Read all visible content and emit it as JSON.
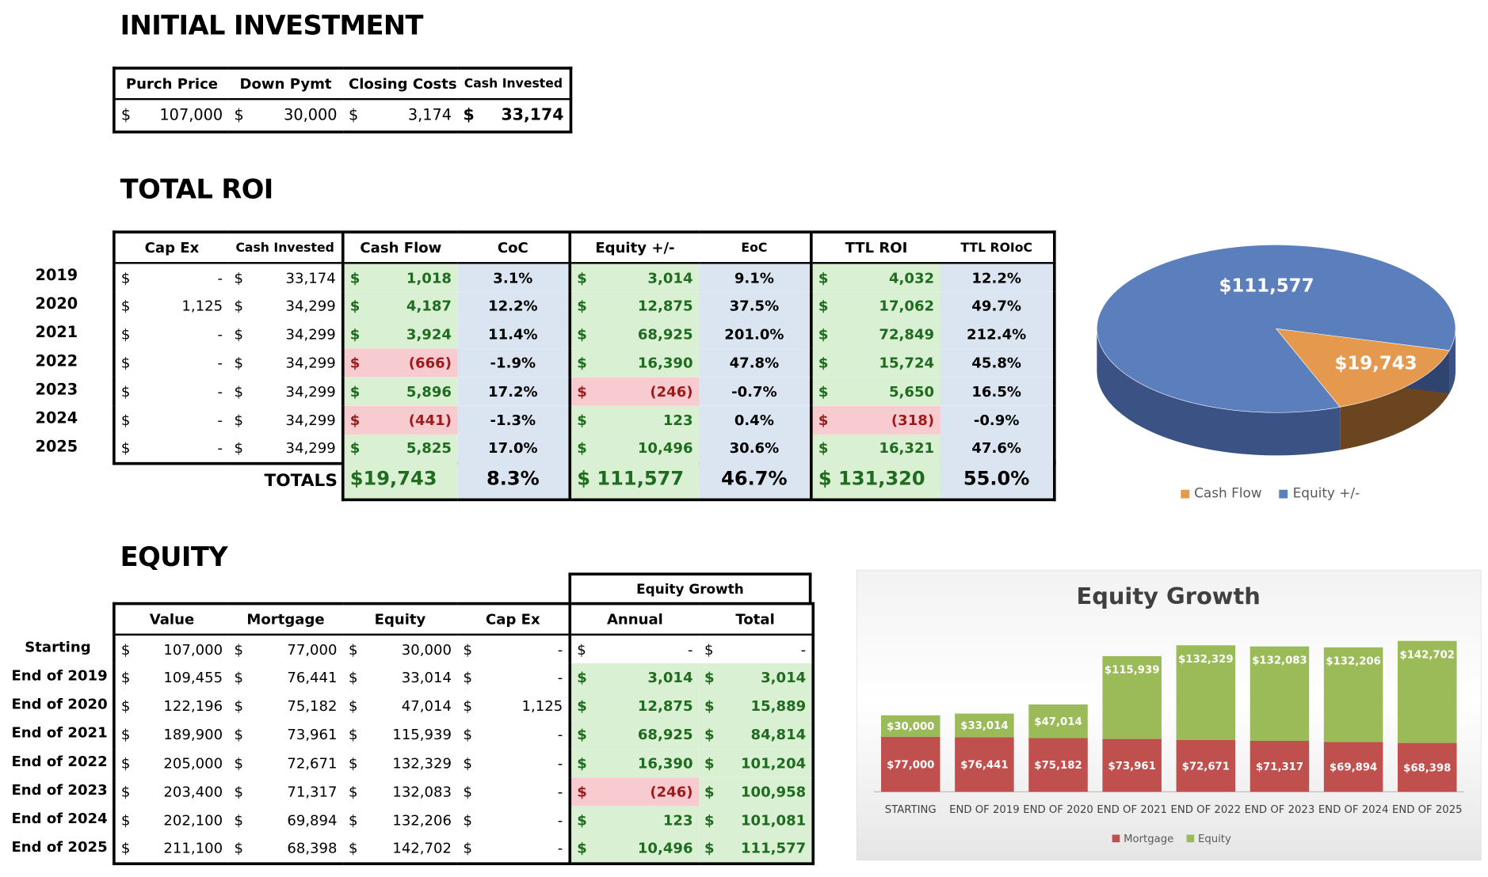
{
  "initial": {
    "title": "INITIAL INVESTMENT",
    "headers": [
      "Purch Price",
      "Down Pymt",
      "Closing Costs",
      "Cash Invested"
    ],
    "values": [
      {
        "sym": "$",
        "num": "107,000"
      },
      {
        "sym": "$",
        "num": "30,000"
      },
      {
        "sym": "$",
        "num": "3,174"
      },
      {
        "sym": "$",
        "num": "33,174"
      }
    ]
  },
  "roi": {
    "title": "TOTAL ROI",
    "headers": [
      "Cap Ex",
      "Cash Invested",
      "Cash Flow",
      "CoC",
      "Equity +/-",
      "EoC",
      "TTL ROI",
      "TTL ROIoC"
    ],
    "rows": [
      {
        "year": "2019",
        "capex": "-",
        "cash": "33,174",
        "cf": "1,018",
        "cf_neg": false,
        "coc": "3.1%",
        "eq": "3,014",
        "eq_neg": false,
        "eoc": "9.1%",
        "ttl": "4,032",
        "ttl_neg": false,
        "ttloc": "12.2%"
      },
      {
        "year": "2020",
        "capex": "1,125",
        "cash": "34,299",
        "cf": "4,187",
        "cf_neg": false,
        "coc": "12.2%",
        "eq": "12,875",
        "eq_neg": false,
        "eoc": "37.5%",
        "ttl": "17,062",
        "ttl_neg": false,
        "ttloc": "49.7%"
      },
      {
        "year": "2021",
        "capex": "-",
        "cash": "34,299",
        "cf": "3,924",
        "cf_neg": false,
        "coc": "11.4%",
        "eq": "68,925",
        "eq_neg": false,
        "eoc": "201.0%",
        "ttl": "72,849",
        "ttl_neg": false,
        "ttloc": "212.4%"
      },
      {
        "year": "2022",
        "capex": "-",
        "cash": "34,299",
        "cf": "(666)",
        "cf_neg": true,
        "coc": "-1.9%",
        "eq": "16,390",
        "eq_neg": false,
        "eoc": "47.8%",
        "ttl": "15,724",
        "ttl_neg": false,
        "ttloc": "45.8%"
      },
      {
        "year": "2023",
        "capex": "-",
        "cash": "34,299",
        "cf": "5,896",
        "cf_neg": false,
        "coc": "17.2%",
        "eq": "(246)",
        "eq_neg": true,
        "eoc": "-0.7%",
        "ttl": "5,650",
        "ttl_neg": false,
        "ttloc": "16.5%"
      },
      {
        "year": "2024",
        "capex": "-",
        "cash": "34,299",
        "cf": "(441)",
        "cf_neg": true,
        "coc": "-1.3%",
        "eq": "123",
        "eq_neg": false,
        "eoc": "0.4%",
        "ttl": "(318)",
        "ttl_neg": true,
        "ttloc": "-0.9%"
      },
      {
        "year": "2025",
        "capex": "-",
        "cash": "34,299",
        "cf": "5,825",
        "cf_neg": false,
        "coc": "17.0%",
        "eq": "10,496",
        "eq_neg": false,
        "eoc": "30.6%",
        "ttl": "16,321",
        "ttl_neg": false,
        "ttloc": "47.6%"
      }
    ],
    "totals": {
      "label": "TOTALS",
      "cf": "$19,743",
      "coc": "8.3%",
      "eq": "$ 111,577",
      "eoc": "46.7%",
      "ttl": "$ 131,320",
      "ttloc": "55.0%"
    }
  },
  "equity": {
    "title": "EQUITY",
    "growth_header": "Equity Growth",
    "headers": [
      "Value",
      "Mortgage",
      "Equity",
      "Cap Ex",
      "Annual",
      "Total"
    ],
    "rows": [
      {
        "label": "Starting",
        "value": "107,000",
        "mortgage": "77,000",
        "equity": "30,000",
        "capex": "-",
        "annual": "-",
        "annual_neg": false,
        "annual_blank": true,
        "total": "-",
        "total_blank": true
      },
      {
        "label": "End of 2019",
        "value": "109,455",
        "mortgage": "76,441",
        "equity": "33,014",
        "capex": "-",
        "annual": "3,014",
        "annual_neg": false,
        "annual_blank": false,
        "total": "3,014",
        "total_blank": false
      },
      {
        "label": "End of 2020",
        "value": "122,196",
        "mortgage": "75,182",
        "equity": "47,014",
        "capex": "1,125",
        "annual": "12,875",
        "annual_neg": false,
        "annual_blank": false,
        "total": "15,889",
        "total_blank": false
      },
      {
        "label": "End of 2021",
        "value": "189,900",
        "mortgage": "73,961",
        "equity": "115,939",
        "capex": "-",
        "annual": "68,925",
        "annual_neg": false,
        "annual_blank": false,
        "total": "84,814",
        "total_blank": false
      },
      {
        "label": "End of 2022",
        "value": "205,000",
        "mortgage": "72,671",
        "equity": "132,329",
        "capex": "-",
        "annual": "16,390",
        "annual_neg": false,
        "annual_blank": false,
        "total": "101,204",
        "total_blank": false
      },
      {
        "label": "End of 2023",
        "value": "203,400",
        "mortgage": "71,317",
        "equity": "132,083",
        "capex": "-",
        "annual": "(246)",
        "annual_neg": true,
        "annual_blank": false,
        "total": "100,958",
        "total_blank": false
      },
      {
        "label": "End of 2024",
        "value": "202,100",
        "mortgage": "69,894",
        "equity": "132,206",
        "capex": "-",
        "annual": "123",
        "annual_neg": false,
        "annual_blank": false,
        "total": "101,081",
        "total_blank": false
      },
      {
        "label": "End of 2025",
        "value": "211,100",
        "mortgage": "68,398",
        "equity": "142,702",
        "capex": "-",
        "annual": "10,496",
        "annual_neg": false,
        "annual_blank": false,
        "total": "111,577",
        "total_blank": false
      }
    ]
  },
  "colors": {
    "cashflow": "#e5994e",
    "equity_pie": "#5b7fbc",
    "mortgage": "#c0504d",
    "equity_bar": "#9bbb59"
  },
  "chart_data": [
    {
      "type": "pie",
      "title": "",
      "slices": [
        {
          "name": "Cash Flow",
          "value": 19743,
          "label": "$19,743"
        },
        {
          "name": "Equity +/-",
          "value": 111577,
          "label": "$111,577"
        }
      ],
      "legend": [
        "Cash Flow",
        "Equity +/-"
      ],
      "legend_position": "bottom"
    },
    {
      "type": "bar",
      "stacked": true,
      "title": "Equity Growth",
      "categories": [
        "STARTING",
        "END OF 2019",
        "END OF 2020",
        "END OF 2021",
        "END OF 2022",
        "END OF 2023",
        "END OF 2024",
        "END OF 2025"
      ],
      "series": [
        {
          "name": "Mortgage",
          "values": [
            77000,
            76441,
            75182,
            73961,
            72671,
            71317,
            69894,
            68398
          ],
          "labels": [
            "$77,000",
            "$76,441",
            "$75,182",
            "$73,961",
            "$72,671",
            "$71,317",
            "$69,894",
            "$68,398"
          ]
        },
        {
          "name": "Equity",
          "values": [
            30000,
            33014,
            47014,
            115939,
            132329,
            132083,
            132206,
            142702
          ],
          "labels": [
            "$30,000",
            "$33,014",
            "$47,014",
            "$115,939",
            "$132,329",
            "$132,083",
            "$132,206",
            "$142,702"
          ]
        }
      ],
      "legend_position": "bottom",
      "ylim": [
        0,
        220000
      ],
      "grid": false
    }
  ]
}
